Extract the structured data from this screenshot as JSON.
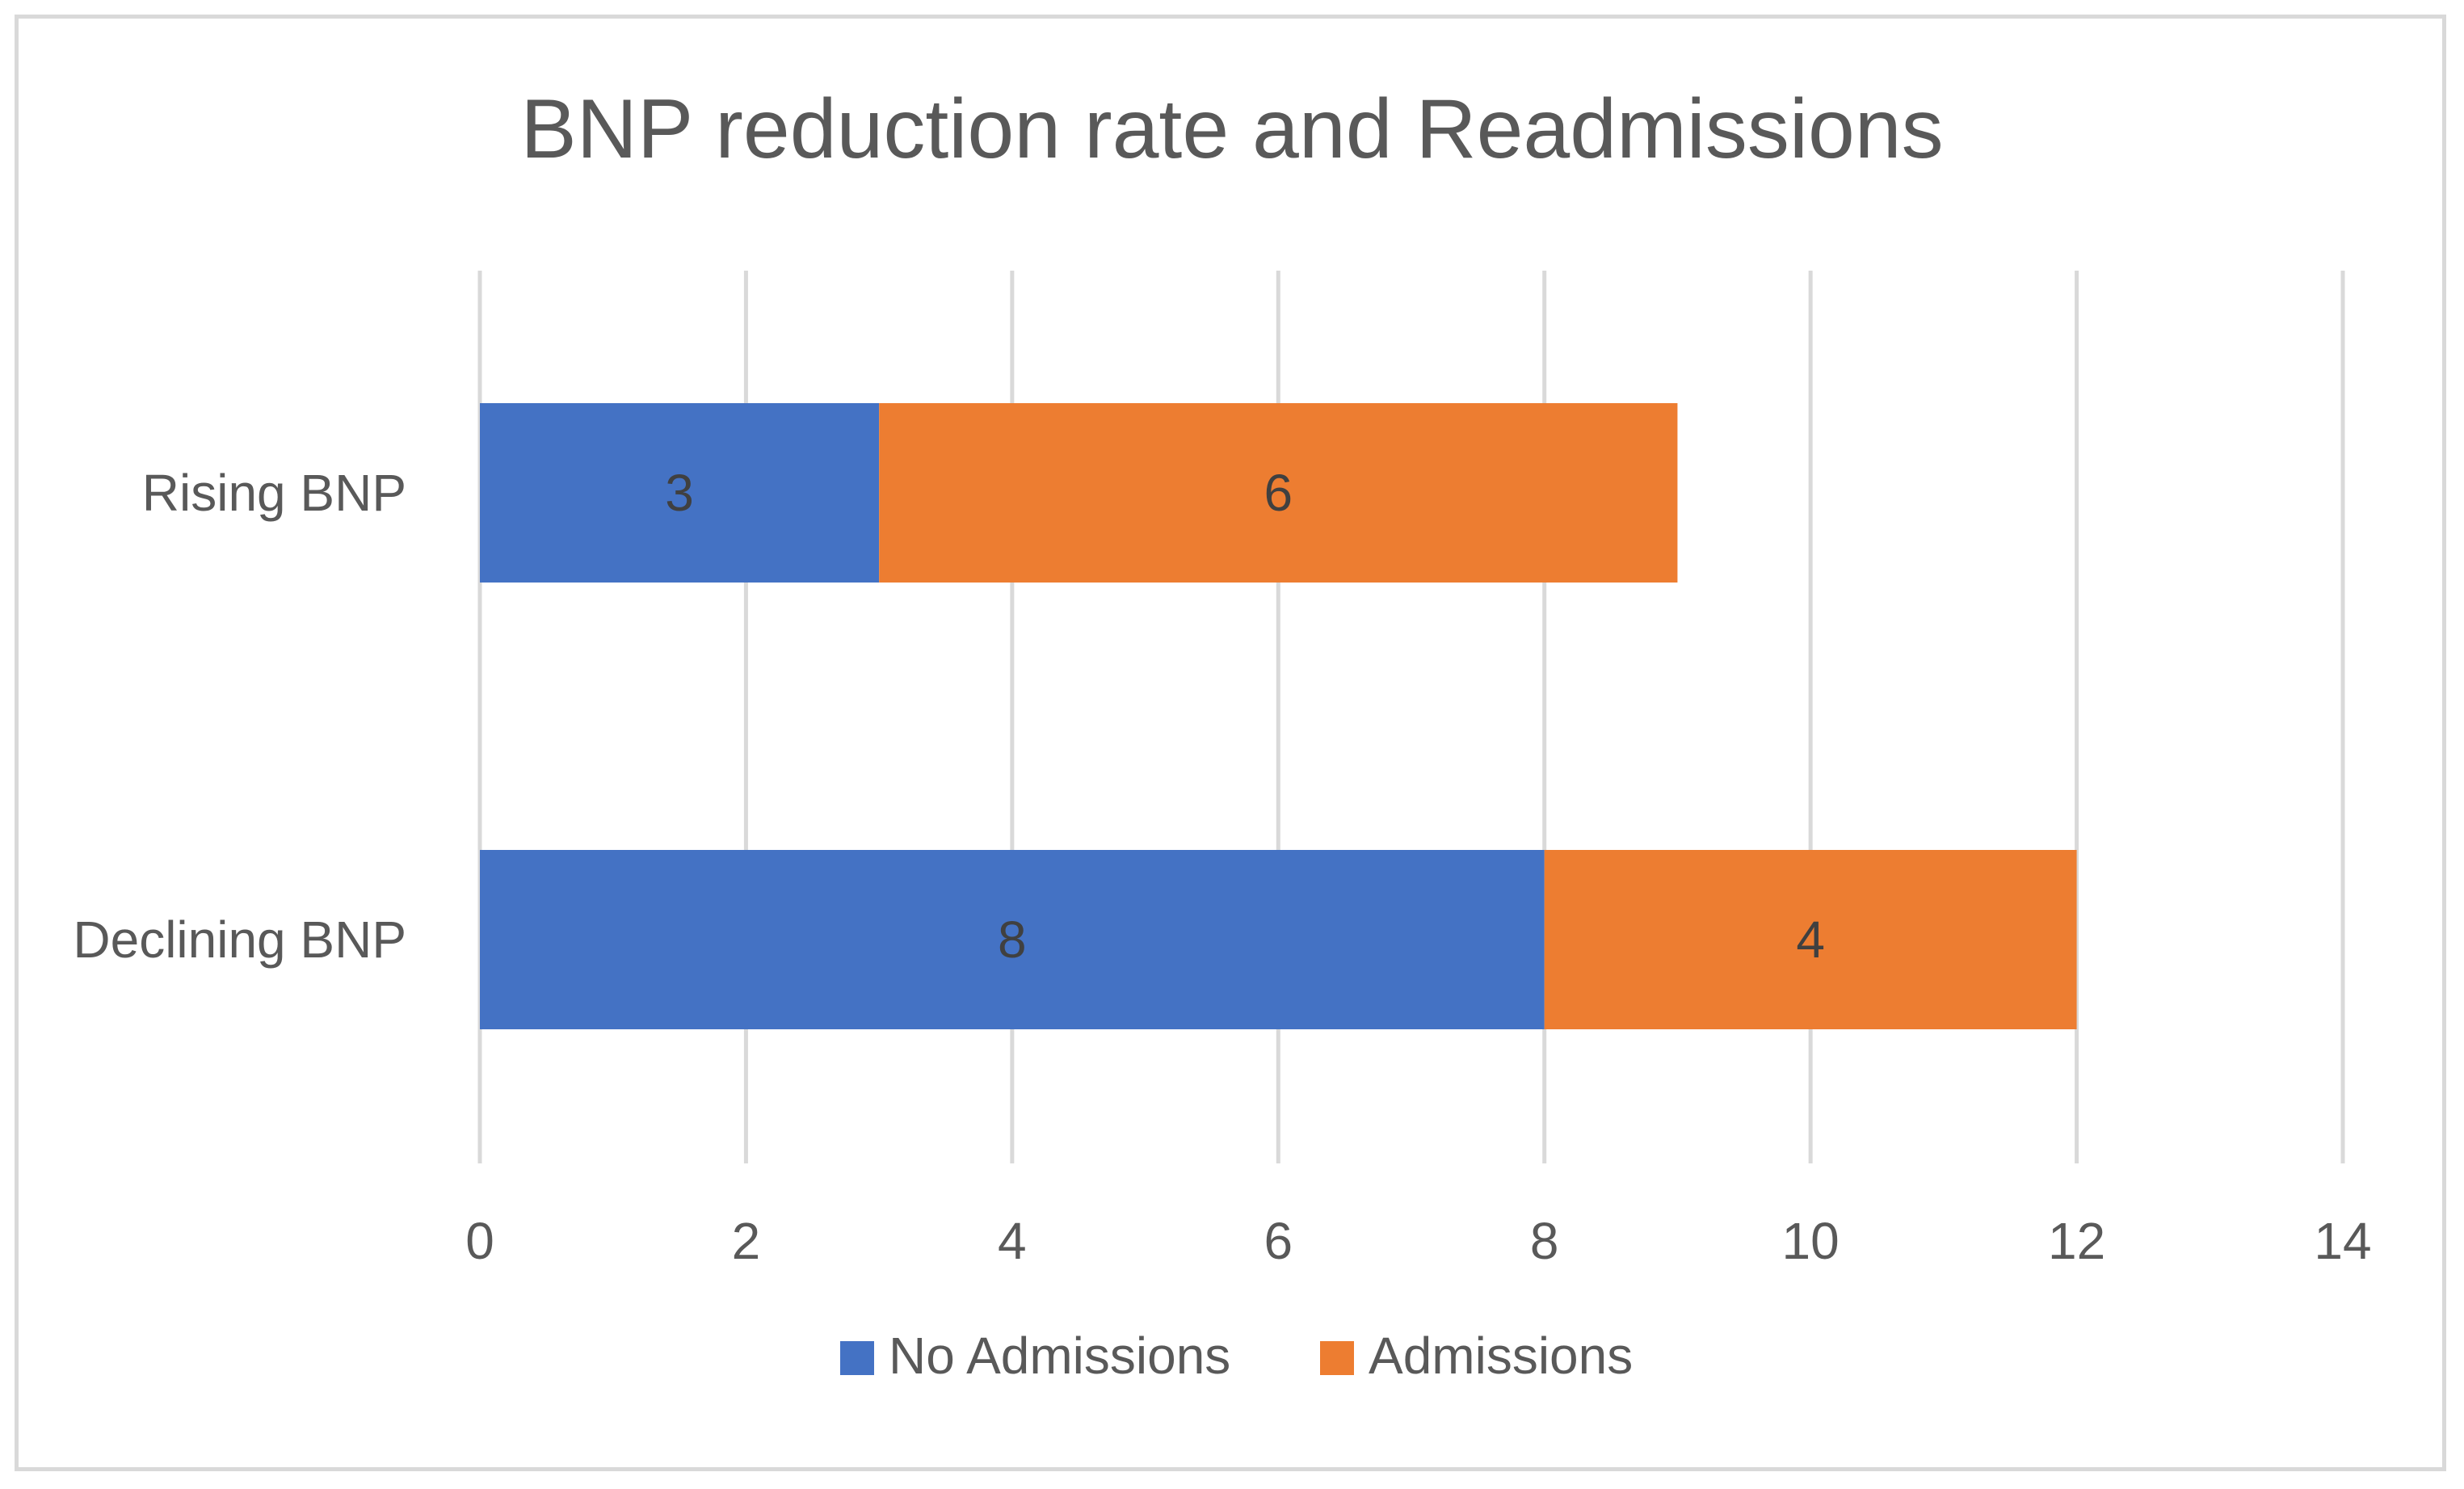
{
  "chart_data": {
    "type": "bar",
    "orientation": "horizontal",
    "stacked": true,
    "title": "BNP reduction rate and Readmissions",
    "xlabel": "",
    "ylabel": "",
    "categories": [
      "Rising BNP",
      "Declining BNP"
    ],
    "series": [
      {
        "name": "No Admissions",
        "values": [
          3,
          8
        ],
        "color": "#4472c4"
      },
      {
        "name": "Admissions",
        "values": [
          6,
          4
        ],
        "color": "#ed7d31"
      }
    ],
    "xlim": [
      0,
      14
    ],
    "xticks": [
      0,
      2,
      4,
      6,
      8,
      10,
      12,
      14
    ],
    "grid": true,
    "legend": "bottom",
    "data_labels": true
  }
}
